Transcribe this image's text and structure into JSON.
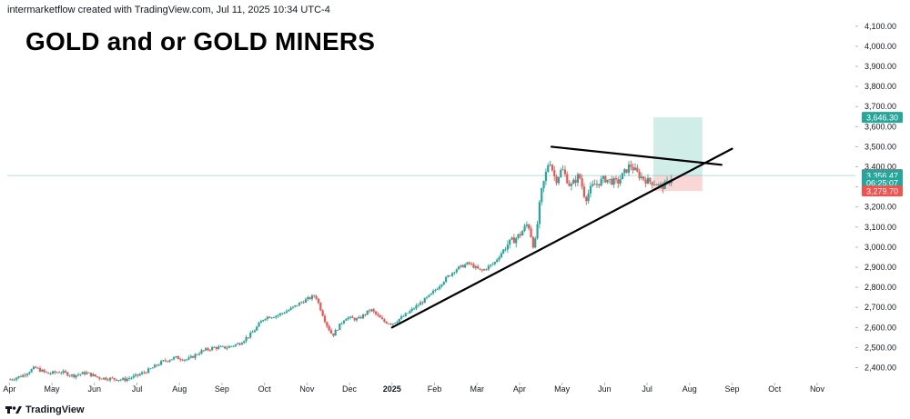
{
  "header": {
    "attribution": "intermarketflow created with TradingView.com, Jul 11, 2025 10:34 UTC-4",
    "title": "GOLD and or GOLD MINERS"
  },
  "footer": {
    "brand": "TradingView"
  },
  "colors": {
    "up": "#26a69a",
    "down": "#ef5350",
    "trendline": "#000000",
    "profit_zone": "#c8ebe3",
    "loss_zone": "#f9d0d0",
    "axis_text": "#131722"
  },
  "chart_data": {
    "type": "candlestick",
    "y_axis": {
      "position": "right",
      "ylim": [
        2330,
        4140
      ],
      "ticks": [
        "4,100.00",
        "4,000.00",
        "3,900.00",
        "3,800.00",
        "3,700.00",
        "3,600.00",
        "3,500.00",
        "3,400.00",
        "3,300.00",
        "3,200.00",
        "3,100.00",
        "3,000.00",
        "2,900.00",
        "2,800.00",
        "2,700.00",
        "2,600.00",
        "2,500.00",
        "2,400.00"
      ]
    },
    "x_axis": {
      "ticks": [
        "Apr",
        "May",
        "Jun",
        "Jul",
        "Aug",
        "Sep",
        "Oct",
        "Nov",
        "Dec",
        "2025",
        "Feb",
        "Mar",
        "Apr",
        "May",
        "Jun",
        "Jul",
        "Aug",
        "Sep",
        "Oct",
        "Nov"
      ],
      "tick_months_index": [
        0,
        1,
        2,
        3,
        4,
        5,
        6,
        7,
        8,
        9,
        10,
        11,
        12,
        13,
        14,
        15,
        16,
        17,
        18,
        19
      ],
      "bold_ticks": [
        "2025"
      ],
      "month_span": [
        -0.05,
        19.9
      ]
    },
    "trend_path": [
      [
        0.0,
        2340
      ],
      [
        0.3,
        2360
      ],
      [
        0.6,
        2400
      ],
      [
        0.9,
        2370
      ],
      [
        1.2,
        2380
      ],
      [
        1.5,
        2360
      ],
      [
        1.8,
        2375
      ],
      [
        2.1,
        2350
      ],
      [
        2.4,
        2345
      ],
      [
        2.7,
        2340
      ],
      [
        3.0,
        2360
      ],
      [
        3.3,
        2390
      ],
      [
        3.6,
        2430
      ],
      [
        3.9,
        2450
      ],
      [
        4.2,
        2440
      ],
      [
        4.5,
        2480
      ],
      [
        4.8,
        2500
      ],
      [
        5.1,
        2500
      ],
      [
        5.4,
        2520
      ],
      [
        5.7,
        2570
      ],
      [
        6.0,
        2650
      ],
      [
        6.3,
        2660
      ],
      [
        6.6,
        2690
      ],
      [
        6.9,
        2730
      ],
      [
        7.2,
        2760
      ],
      [
        7.45,
        2620
      ],
      [
        7.6,
        2560
      ],
      [
        7.9,
        2650
      ],
      [
        8.2,
        2640
      ],
      [
        8.5,
        2690
      ],
      [
        8.8,
        2630
      ],
      [
        9.0,
        2620
      ],
      [
        9.3,
        2660
      ],
      [
        9.6,
        2710
      ],
      [
        9.9,
        2760
      ],
      [
        10.2,
        2830
      ],
      [
        10.5,
        2890
      ],
      [
        10.8,
        2920
      ],
      [
        11.1,
        2880
      ],
      [
        11.4,
        2920
      ],
      [
        11.7,
        3010
      ],
      [
        12.0,
        3060
      ],
      [
        12.2,
        3120
      ],
      [
        12.35,
        2990
      ],
      [
        12.5,
        3260
      ],
      [
        12.7,
        3440
      ],
      [
        12.85,
        3330
      ],
      [
        13.0,
        3390
      ],
      [
        13.2,
        3300
      ],
      [
        13.4,
        3360
      ],
      [
        13.55,
        3240
      ],
      [
        13.7,
        3300
      ],
      [
        14.0,
        3340
      ],
      [
        14.3,
        3320
      ],
      [
        14.6,
        3410
      ],
      [
        14.8,
        3360
      ],
      [
        15.0,
        3330
      ],
      [
        15.2,
        3320
      ],
      [
        15.3,
        3300
      ],
      [
        15.45,
        3310
      ],
      [
        15.6,
        3356.47
      ]
    ],
    "last_price": 3356.47,
    "trendlines": [
      {
        "name": "support",
        "from": [
          9.0,
          2600
        ],
        "to": [
          17.0,
          3490
        ]
      },
      {
        "name": "resistance",
        "from": [
          12.75,
          3500
        ],
        "to": [
          16.75,
          3410
        ]
      }
    ],
    "position": {
      "from_month": 15.15,
      "to_month": 16.3,
      "entry": 3356.47,
      "target": 3646.3,
      "stop": 3279.7
    },
    "price_labels": [
      {
        "value": 3646.3,
        "text": "3,646.30",
        "color": "#26a69a"
      },
      {
        "value": 3361.15,
        "text": "3,361.15",
        "color": "#787b86"
      },
      {
        "value": 3356.47,
        "text": "3,356.47",
        "color": "#26a69a"
      },
      {
        "value": 3320,
        "text": "06:25:07",
        "color": "#26a69a"
      },
      {
        "value": 3279.7,
        "text": "3,279.70",
        "color": "#ef5350"
      }
    ]
  }
}
